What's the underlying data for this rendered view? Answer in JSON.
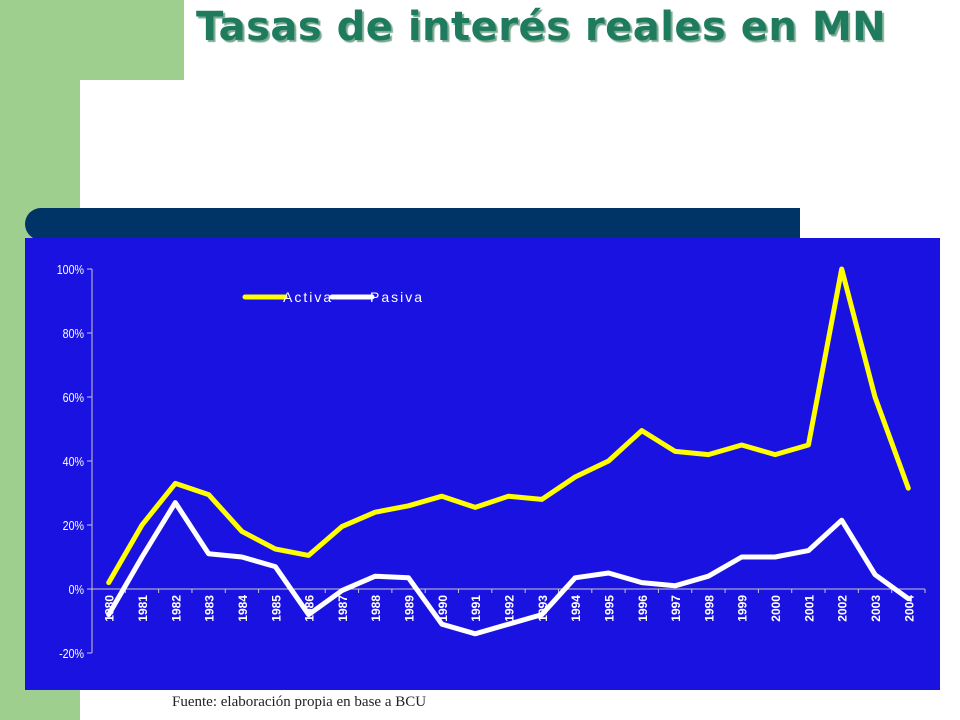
{
  "slide": {
    "title": "Tasas de interés reales en MN",
    "source": "Fuente: elaboración propia en base a BCU"
  },
  "colors": {
    "background": "#ffffff",
    "side_bar": "#9fcf8f",
    "title": "#1f7b5e",
    "header_band": "#003366",
    "plot_background": "#1a12e0",
    "activa": "#ffff00",
    "pasiva": "#ffffff",
    "axis_text": "#ffffff"
  },
  "chart_data": {
    "type": "line",
    "title": "",
    "xlabel": "",
    "ylabel": "",
    "ylim": [
      -20,
      100
    ],
    "yticks": [
      "-20%",
      "0%",
      "20%",
      "40%",
      "60%",
      "80%",
      "100%"
    ],
    "ytick_values": [
      -20,
      0,
      20,
      40,
      60,
      80,
      100
    ],
    "categories": [
      "1980",
      "1981",
      "1982",
      "1983",
      "1984",
      "1985",
      "1986",
      "1987",
      "1988",
      "1989",
      "1990",
      "1991",
      "1992",
      "1993",
      "1994",
      "1995",
      "1996",
      "1997",
      "1998",
      "1999",
      "2000",
      "2001",
      "2002",
      "2003",
      "2004"
    ],
    "series": [
      {
        "name": "Activa",
        "color": "#ffff00",
        "values": [
          2,
          20,
          33,
          29.5,
          18,
          12.5,
          10.5,
          19.5,
          24,
          26,
          29,
          25.5,
          29,
          28,
          35,
          40,
          49.5,
          43,
          42,
          45,
          42,
          45,
          100,
          60,
          31.5
        ]
      },
      {
        "name": "Pasiva",
        "color": "#ffffff",
        "values": [
          -8,
          10,
          27,
          11,
          10,
          7,
          -8,
          -0.5,
          4,
          3.5,
          -11,
          -14,
          -11,
          -8,
          3.5,
          5,
          2,
          1,
          4,
          10,
          10,
          12,
          21.5,
          4.5,
          -3
        ]
      }
    ],
    "legend": {
      "position": "top-left",
      "entries": [
        "Activa",
        "Pasiva"
      ]
    },
    "grid": false
  }
}
